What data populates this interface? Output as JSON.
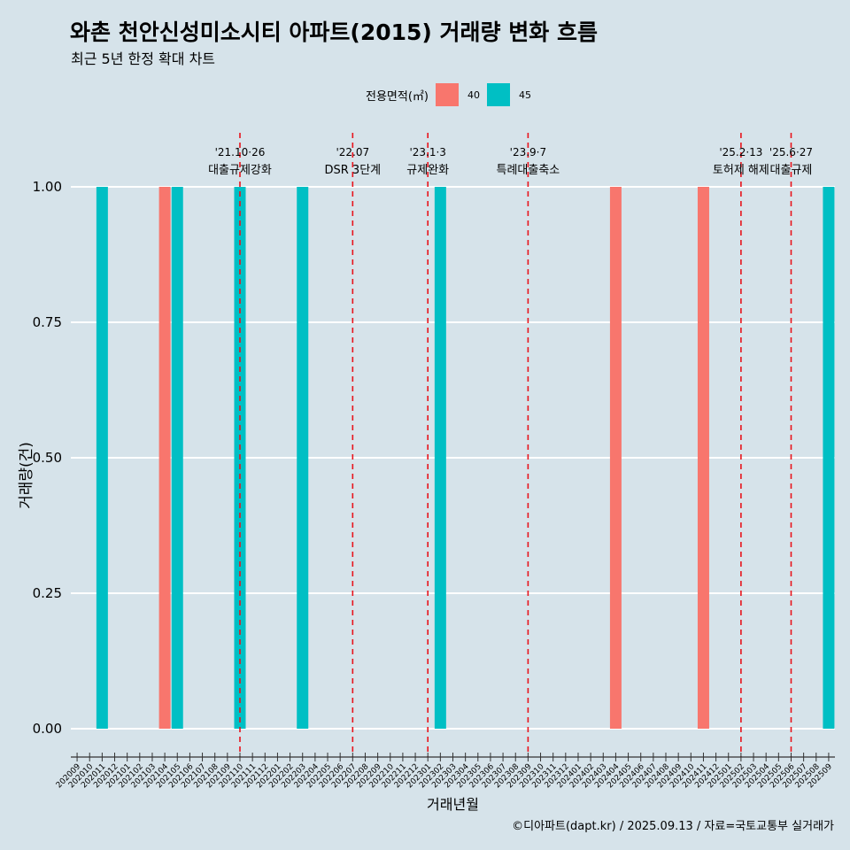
{
  "title": "와촌 천안신성미소시티 아파트(2015) 거래량 변화 흐름",
  "subtitle": "최근 5년 한정 확대 차트",
  "caption": "©디아파트(dapt.kr) / 2025.09.13 / 자료=국토교통부 실거래가",
  "legend": {
    "title": "전용면적(㎡)",
    "items": [
      {
        "label": "40",
        "color": "#f8766d"
      },
      {
        "label": "45",
        "color": "#00bfc4"
      }
    ]
  },
  "chart_data": {
    "type": "bar",
    "xlabel": "거래년월",
    "ylabel": "거래량(건)",
    "ylim": [
      0,
      1
    ],
    "yticks": [
      "0.00",
      "0.25",
      "0.50",
      "0.75",
      "1.00"
    ],
    "categories": [
      "202009",
      "202010",
      "202011",
      "202012",
      "202101",
      "202102",
      "202103",
      "202104",
      "202105",
      "202106",
      "202107",
      "202108",
      "202109",
      "202110",
      "202111",
      "202112",
      "202201",
      "202202",
      "202203",
      "202204",
      "202205",
      "202206",
      "202207",
      "202208",
      "202209",
      "202210",
      "202211",
      "202212",
      "202301",
      "202302",
      "202303",
      "202304",
      "202305",
      "202306",
      "202307",
      "202308",
      "202309",
      "202310",
      "202311",
      "202312",
      "202401",
      "202402",
      "202403",
      "202404",
      "202405",
      "202406",
      "202407",
      "202408",
      "202409",
      "202410",
      "202411",
      "202412",
      "202501",
      "202502",
      "202503",
      "202504",
      "202505",
      "202506",
      "202507",
      "202508",
      "202509"
    ],
    "bars": [
      {
        "month": "202011",
        "area": "45",
        "value": 1
      },
      {
        "month": "202104",
        "area": "40",
        "value": 1
      },
      {
        "month": "202105",
        "area": "45",
        "value": 1
      },
      {
        "month": "202110",
        "area": "45",
        "value": 1
      },
      {
        "month": "202203",
        "area": "45",
        "value": 1
      },
      {
        "month": "202302",
        "area": "45",
        "value": 1
      },
      {
        "month": "202404",
        "area": "40",
        "value": 1
      },
      {
        "month": "202411",
        "area": "40",
        "value": 1
      },
      {
        "month": "202509",
        "area": "45",
        "value": 1
      }
    ],
    "annotations": [
      {
        "month": "202110",
        "date": "'21.10·26",
        "label": "대출규제강화"
      },
      {
        "month": "202207",
        "date": "'22.07",
        "label": "DSR 3단계"
      },
      {
        "month": "202301",
        "date": "'23.1·3",
        "label": "규제완화"
      },
      {
        "month": "202309",
        "date": "'23.9·7",
        "label": "특례대출축소"
      },
      {
        "month": "202502",
        "date": "'25.2·13",
        "label": "토허제 해제"
      },
      {
        "month": "202506",
        "date": "'25.6·27",
        "label": "대출규제"
      }
    ]
  }
}
